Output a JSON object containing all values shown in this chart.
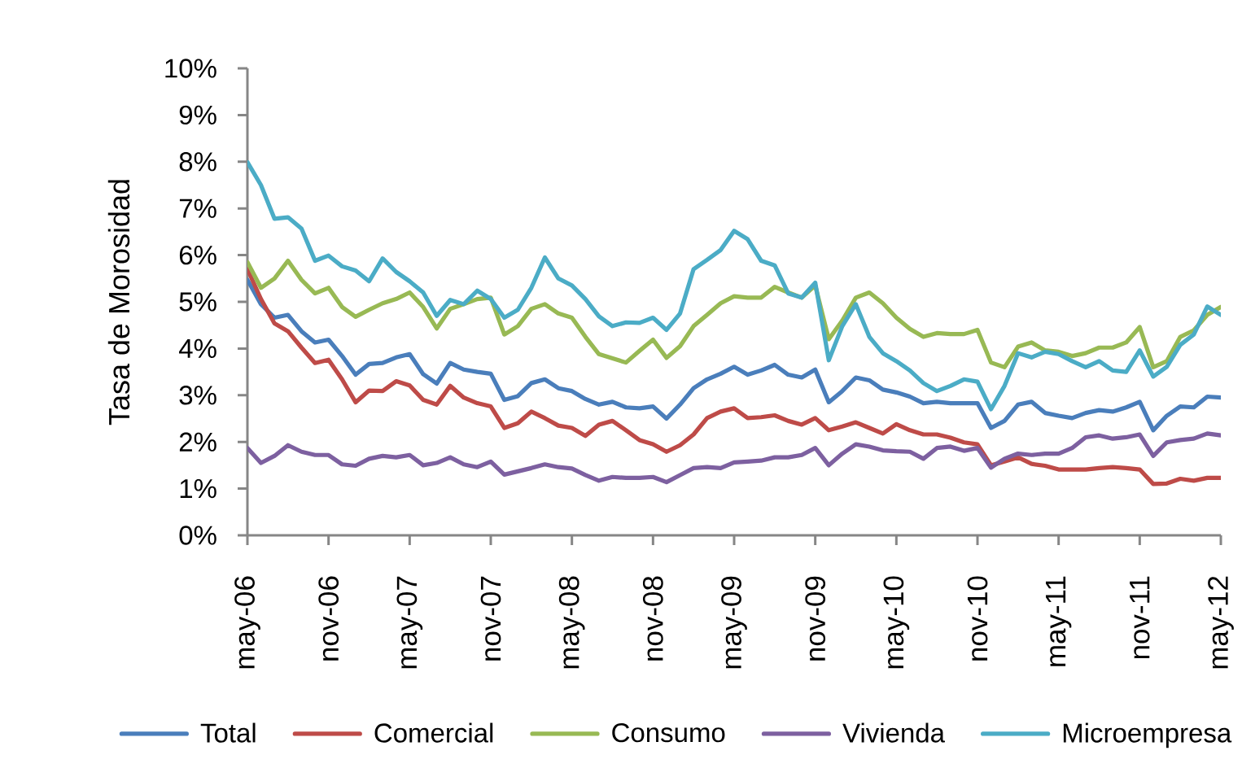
{
  "chart_data": {
    "type": "line",
    "ylabel": "Tasa de Morosidad",
    "categories": [
      "may-06",
      null,
      null,
      null,
      null,
      null,
      "nov-06",
      null,
      null,
      null,
      null,
      null,
      "may-07",
      null,
      null,
      null,
      null,
      null,
      "nov-07",
      null,
      null,
      null,
      null,
      null,
      "may-08",
      null,
      null,
      null,
      null,
      null,
      "nov-08",
      null,
      null,
      null,
      null,
      null,
      "may-09",
      null,
      null,
      null,
      null,
      null,
      "nov-09",
      null,
      null,
      null,
      null,
      null,
      "may-10",
      null,
      null,
      null,
      null,
      null,
      "nov-10",
      null,
      null,
      null,
      null,
      null,
      "may-11",
      null,
      null,
      null,
      null,
      null,
      "nov-11",
      null,
      null,
      null,
      null,
      null,
      "may-12"
    ],
    "series": [
      {
        "name": "Total",
        "color": "#4a7ebb",
        "values": [
          5.47,
          4.95,
          4.66,
          4.72,
          4.37,
          4.13,
          4.19,
          3.84,
          3.44,
          3.67,
          3.69,
          3.81,
          3.88,
          3.45,
          3.25,
          3.69,
          3.55,
          3.5,
          3.46,
          2.9,
          2.98,
          3.26,
          3.34,
          3.15,
          3.09,
          2.92,
          2.8,
          2.86,
          2.74,
          2.72,
          2.76,
          2.5,
          2.8,
          3.15,
          3.34,
          3.46,
          3.61,
          3.44,
          3.53,
          3.65,
          3.44,
          3.38,
          3.55,
          2.85,
          3.09,
          3.38,
          3.32,
          3.12,
          3.06,
          2.97,
          2.83,
          2.86,
          2.83,
          2.83,
          2.83,
          2.3,
          2.45,
          2.8,
          2.86,
          2.62,
          2.56,
          2.51,
          2.62,
          2.68,
          2.65,
          2.74,
          2.86,
          2.25,
          2.56,
          2.76,
          2.74,
          2.97,
          2.95
        ]
      },
      {
        "name": "Comercial",
        "color": "#be4b48",
        "values": [
          5.7,
          5.06,
          4.54,
          4.37,
          4.02,
          3.69,
          3.76,
          3.34,
          2.85,
          3.1,
          3.09,
          3.3,
          3.21,
          2.9,
          2.8,
          3.2,
          2.95,
          2.83,
          2.76,
          2.3,
          2.4,
          2.65,
          2.51,
          2.35,
          2.3,
          2.13,
          2.37,
          2.45,
          2.25,
          2.04,
          1.95,
          1.79,
          1.93,
          2.16,
          2.51,
          2.65,
          2.72,
          2.51,
          2.53,
          2.57,
          2.45,
          2.37,
          2.51,
          2.25,
          2.33,
          2.42,
          2.3,
          2.18,
          2.38,
          2.25,
          2.16,
          2.16,
          2.09,
          1.99,
          1.95,
          1.5,
          1.58,
          1.67,
          1.53,
          1.49,
          1.41,
          1.41,
          1.41,
          1.44,
          1.46,
          1.44,
          1.41,
          1.1,
          1.11,
          1.21,
          1.17,
          1.23,
          1.23
        ]
      },
      {
        "name": "Consumo",
        "color": "#98b954",
        "values": [
          5.85,
          5.3,
          5.5,
          5.88,
          5.47,
          5.18,
          5.3,
          4.89,
          4.68,
          4.83,
          4.97,
          5.06,
          5.2,
          4.89,
          4.43,
          4.85,
          4.95,
          5.06,
          5.09,
          4.3,
          4.48,
          4.85,
          4.95,
          4.75,
          4.66,
          4.25,
          3.88,
          3.79,
          3.7,
          3.95,
          4.19,
          3.8,
          4.05,
          4.48,
          4.72,
          4.97,
          5.12,
          5.09,
          5.09,
          5.32,
          5.2,
          5.09,
          5.35,
          4.2,
          4.6,
          5.09,
          5.2,
          4.97,
          4.66,
          4.42,
          4.25,
          4.33,
          4.31,
          4.31,
          4.4,
          3.7,
          3.6,
          4.04,
          4.13,
          3.96,
          3.93,
          3.84,
          3.9,
          4.02,
          4.02,
          4.13,
          4.46,
          3.6,
          3.73,
          4.25,
          4.39,
          4.72,
          4.89
        ]
      },
      {
        "name": "Vivienda",
        "color": "#7d60a0",
        "values": [
          1.87,
          1.55,
          1.7,
          1.93,
          1.79,
          1.72,
          1.72,
          1.52,
          1.49,
          1.64,
          1.7,
          1.67,
          1.72,
          1.5,
          1.55,
          1.67,
          1.52,
          1.46,
          1.58,
          1.3,
          1.37,
          1.44,
          1.52,
          1.46,
          1.43,
          1.29,
          1.17,
          1.25,
          1.23,
          1.23,
          1.25,
          1.14,
          1.29,
          1.44,
          1.46,
          1.44,
          1.56,
          1.58,
          1.6,
          1.67,
          1.67,
          1.72,
          1.87,
          1.5,
          1.75,
          1.95,
          1.9,
          1.82,
          1.8,
          1.79,
          1.64,
          1.87,
          1.9,
          1.81,
          1.87,
          1.45,
          1.64,
          1.75,
          1.72,
          1.75,
          1.75,
          1.87,
          2.1,
          2.14,
          2.07,
          2.1,
          2.16,
          1.7,
          1.99,
          2.04,
          2.07,
          2.18,
          2.14
        ]
      },
      {
        "name": "Microempresa",
        "color": "#4bacc6",
        "values": [
          7.99,
          7.5,
          6.78,
          6.81,
          6.57,
          5.88,
          5.99,
          5.76,
          5.67,
          5.44,
          5.93,
          5.64,
          5.44,
          5.2,
          4.7,
          5.04,
          4.95,
          5.24,
          5.06,
          4.66,
          4.83,
          5.3,
          5.95,
          5.5,
          5.35,
          5.06,
          4.69,
          4.48,
          4.56,
          4.55,
          4.66,
          4.4,
          4.75,
          5.7,
          5.9,
          6.11,
          6.52,
          6.34,
          5.88,
          5.78,
          5.18,
          5.09,
          5.41,
          3.75,
          4.48,
          4.95,
          4.25,
          3.9,
          3.73,
          3.53,
          3.26,
          3.09,
          3.2,
          3.34,
          3.29,
          2.7,
          3.2,
          3.9,
          3.81,
          3.93,
          3.88,
          3.73,
          3.6,
          3.73,
          3.53,
          3.5,
          3.96,
          3.4,
          3.61,
          4.08,
          4.3,
          4.9,
          4.72
        ]
      }
    ],
    "ylim": [
      0,
      10
    ],
    "yticks": [
      {
        "value": 0,
        "label": "0%"
      },
      {
        "value": 1,
        "label": "1%"
      },
      {
        "value": 2,
        "label": "2%"
      },
      {
        "value": 3,
        "label": "3%"
      },
      {
        "value": 4,
        "label": "4%"
      },
      {
        "value": 5,
        "label": "5%"
      },
      {
        "value": 6,
        "label": "6%"
      },
      {
        "value": 7,
        "label": "7%"
      },
      {
        "value": 8,
        "label": "8%"
      },
      {
        "value": 9,
        "label": "9%"
      },
      {
        "value": 10,
        "label": "10%"
      }
    ],
    "legend": "bottom",
    "marker": "none",
    "line_style": "solid"
  }
}
